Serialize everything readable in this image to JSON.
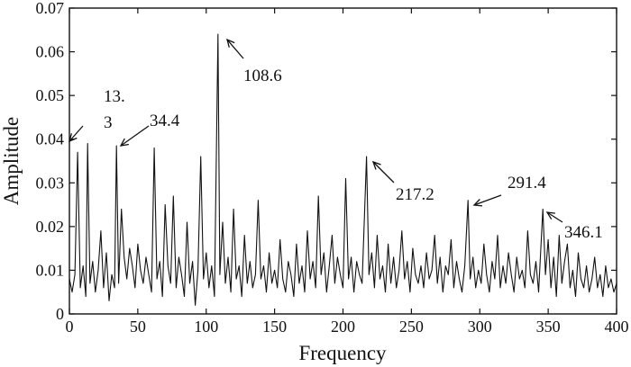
{
  "chart_data": {
    "type": "line",
    "title": "",
    "xlabel": "Frequency",
    "ylabel": "Amplitude",
    "xlim": [
      0,
      400
    ],
    "ylim": [
      0,
      0.07
    ],
    "x_ticks": [
      0,
      50,
      100,
      150,
      200,
      250,
      300,
      350,
      400
    ],
    "x_tick_labels": [
      "0",
      "50",
      "100",
      "150",
      "200",
      "250",
      "300",
      "350",
      "400"
    ],
    "y_ticks": [
      0,
      0.01,
      0.02,
      0.03,
      0.04,
      0.05,
      0.06,
      0.07
    ],
    "y_tick_labels": [
      "0",
      "0.01",
      "0.02",
      "0.03",
      "0.04",
      "0.05",
      "0.06",
      "0.07"
    ],
    "grid": false,
    "legend": "none",
    "line_color": "#111111",
    "series": [
      {
        "x": [
          0,
          2,
          4,
          6,
          8,
          10,
          12,
          13.3,
          15,
          17,
          19,
          21,
          23,
          25,
          27,
          29,
          31,
          33,
          34.4,
          36,
          38,
          40,
          42,
          44,
          46,
          48,
          50,
          52,
          54,
          56,
          58,
          60,
          62,
          64,
          66,
          68,
          70,
          72,
          74,
          76,
          78,
          80,
          82,
          84,
          86,
          88,
          90,
          92,
          94,
          96,
          98,
          100,
          102,
          104,
          106,
          108.6,
          110,
          112,
          114,
          116,
          118,
          120,
          122,
          124,
          126,
          128,
          130,
          132,
          134,
          136,
          138,
          140,
          142,
          144,
          146,
          148,
          150,
          152,
          154,
          156,
          158,
          160,
          162,
          164,
          166,
          168,
          170,
          172,
          174,
          176,
          178,
          180,
          182,
          184,
          186,
          188,
          190,
          192,
          194,
          196,
          198,
          200,
          202,
          204,
          206,
          208,
          210,
          212,
          214,
          217.2,
          219,
          221,
          223,
          225,
          227,
          229,
          231,
          233,
          235,
          237,
          239,
          241,
          243,
          245,
          247,
          249,
          251,
          253,
          255,
          257,
          259,
          261,
          263,
          265,
          267,
          269,
          271,
          273,
          275,
          277,
          279,
          281,
          283,
          285,
          287,
          289,
          291.4,
          293,
          295,
          297,
          299,
          301,
          303,
          305,
          307,
          309,
          311,
          313,
          315,
          317,
          319,
          321,
          323,
          325,
          327,
          329,
          331,
          333,
          335,
          337,
          339,
          341,
          343,
          346.1,
          348,
          350,
          352,
          354,
          356,
          358,
          360,
          362,
          364,
          366,
          368,
          370,
          372,
          374,
          376,
          378,
          380,
          382,
          384,
          386,
          388,
          390,
          392,
          394,
          396,
          398,
          400
        ],
        "values": [
          0.008,
          0.005,
          0.009,
          0.037,
          0.006,
          0.011,
          0.004,
          0.039,
          0.007,
          0.012,
          0.005,
          0.01,
          0.019,
          0.006,
          0.014,
          0.003,
          0.009,
          0.006,
          0.0385,
          0.007,
          0.024,
          0.013,
          0.008,
          0.015,
          0.011,
          0.006,
          0.016,
          0.01,
          0.007,
          0.013,
          0.009,
          0.005,
          0.038,
          0.008,
          0.012,
          0.004,
          0.025,
          0.011,
          0.007,
          0.027,
          0.006,
          0.013,
          0.009,
          0.004,
          0.021,
          0.007,
          0.012,
          0.002,
          0.01,
          0.036,
          0.008,
          0.014,
          0.006,
          0.011,
          0.004,
          0.064,
          0.009,
          0.021,
          0.007,
          0.013,
          0.005,
          0.024,
          0.008,
          0.011,
          0.004,
          0.018,
          0.007,
          0.012,
          0.006,
          0.009,
          0.026,
          0.008,
          0.011,
          0.005,
          0.014,
          0.007,
          0.01,
          0.006,
          0.017,
          0.008,
          0.005,
          0.012,
          0.009,
          0.004,
          0.016,
          0.007,
          0.011,
          0.005,
          0.019,
          0.008,
          0.012,
          0.006,
          0.027,
          0.009,
          0.014,
          0.005,
          0.011,
          0.018,
          0.007,
          0.013,
          0.009,
          0.006,
          0.031,
          0.008,
          0.013,
          0.005,
          0.012,
          0.009,
          0.007,
          0.036,
          0.009,
          0.014,
          0.006,
          0.018,
          0.008,
          0.011,
          0.005,
          0.016,
          0.007,
          0.013,
          0.006,
          0.01,
          0.019,
          0.008,
          0.012,
          0.005,
          0.015,
          0.009,
          0.007,
          0.011,
          0.006,
          0.014,
          0.008,
          0.01,
          0.018,
          0.007,
          0.013,
          0.005,
          0.011,
          0.009,
          0.017,
          0.006,
          0.012,
          0.008,
          0.005,
          0.011,
          0.026,
          0.008,
          0.013,
          0.006,
          0.01,
          0.007,
          0.016,
          0.009,
          0.005,
          0.012,
          0.008,
          0.018,
          0.006,
          0.011,
          0.007,
          0.014,
          0.009,
          0.005,
          0.013,
          0.008,
          0.01,
          0.006,
          0.019,
          0.009,
          0.007,
          0.012,
          0.005,
          0.024,
          0.009,
          0.017,
          0.006,
          0.013,
          0.004,
          0.018,
          0.007,
          0.012,
          0.016,
          0.006,
          0.01,
          0.004,
          0.014,
          0.008,
          0.006,
          0.011,
          0.005,
          0.008,
          0.013,
          0.006,
          0.009,
          0.004,
          0.011,
          0.006,
          0.008,
          0.005,
          0.007
        ]
      }
    ],
    "annotations": [
      {
        "text": "13.3",
        "lines": [
          "13.",
          "3"
        ],
        "x": 13.3,
        "y": 0.039
      },
      {
        "text": "34.4",
        "lines": [
          "34.4"
        ],
        "x": 34.4,
        "y": 0.0385
      },
      {
        "text": "108.6",
        "lines": [
          "108.6"
        ],
        "x": 108.6,
        "y": 0.064
      },
      {
        "text": "217.2",
        "lines": [
          "217.2"
        ],
        "x": 217.2,
        "y": 0.036
      },
      {
        "text": "291.4",
        "lines": [
          "291.4"
        ],
        "x": 291.4,
        "y": 0.026
      },
      {
        "text": "346.1",
        "lines": [
          "346.1"
        ],
        "x": 346.1,
        "y": 0.024
      }
    ]
  }
}
